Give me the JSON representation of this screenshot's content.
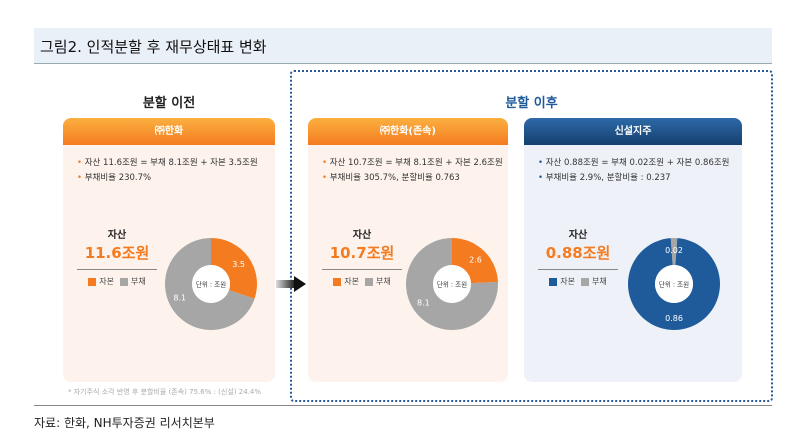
{
  "title": "그림2. 인적분할 후 재무상태표 변화",
  "before": {
    "heading": "분할 이전",
    "card": {
      "name": "㈜한화",
      "bullets": [
        "자산 11.6조원 = 부채 8.1조원 + 자본 3.5조원",
        "부채비율 230.7%"
      ],
      "asset_label": "자산",
      "asset_value": "11.6조원",
      "unit": "단위 : 조원",
      "legend": [
        "자본",
        "부채"
      ],
      "equity": 3.5,
      "debt": 8.1,
      "equity_label": "3.5",
      "debt_label": "8.1"
    },
    "note": "* 자기주식 소각 반영 후 분할비율 (존속) 75.6% : (신설) 24.4%"
  },
  "after": {
    "heading": "분할 이후",
    "cards": [
      {
        "name": "㈜한화(존속)",
        "bullets": [
          "자산 10.7조원 = 부채 8.1조원 + 자본 2.6조원",
          "부채비율 305.7%, 분할비율 0.763"
        ],
        "asset_label": "자산",
        "asset_value": "10.7조원",
        "unit": "단위 : 조원",
        "legend": [
          "자본",
          "부채"
        ],
        "equity": 2.6,
        "debt": 8.1,
        "equity_label": "2.6",
        "debt_label": "8.1"
      },
      {
        "name": "신설지주",
        "bullets": [
          "자산 0.88조원 = 부채 0.02조원 + 자본 0.86조원",
          "부채비율 2.9%, 분할비율 : 0.237"
        ],
        "asset_label": "자산",
        "asset_value": "0.88조원",
        "unit": "단위 : 조원",
        "legend": [
          "자본",
          "부채"
        ],
        "equity": 0.86,
        "debt": 0.02,
        "equity_label": "0.86",
        "debt_label": "0.02"
      }
    ]
  },
  "colors": {
    "orange": "#f47b20",
    "gray": "#a6a6a6",
    "blue": "#1f5b9b",
    "navy": "#1d4a80"
  },
  "source": "자료: 한화, NH투자증권 리서치본부"
}
